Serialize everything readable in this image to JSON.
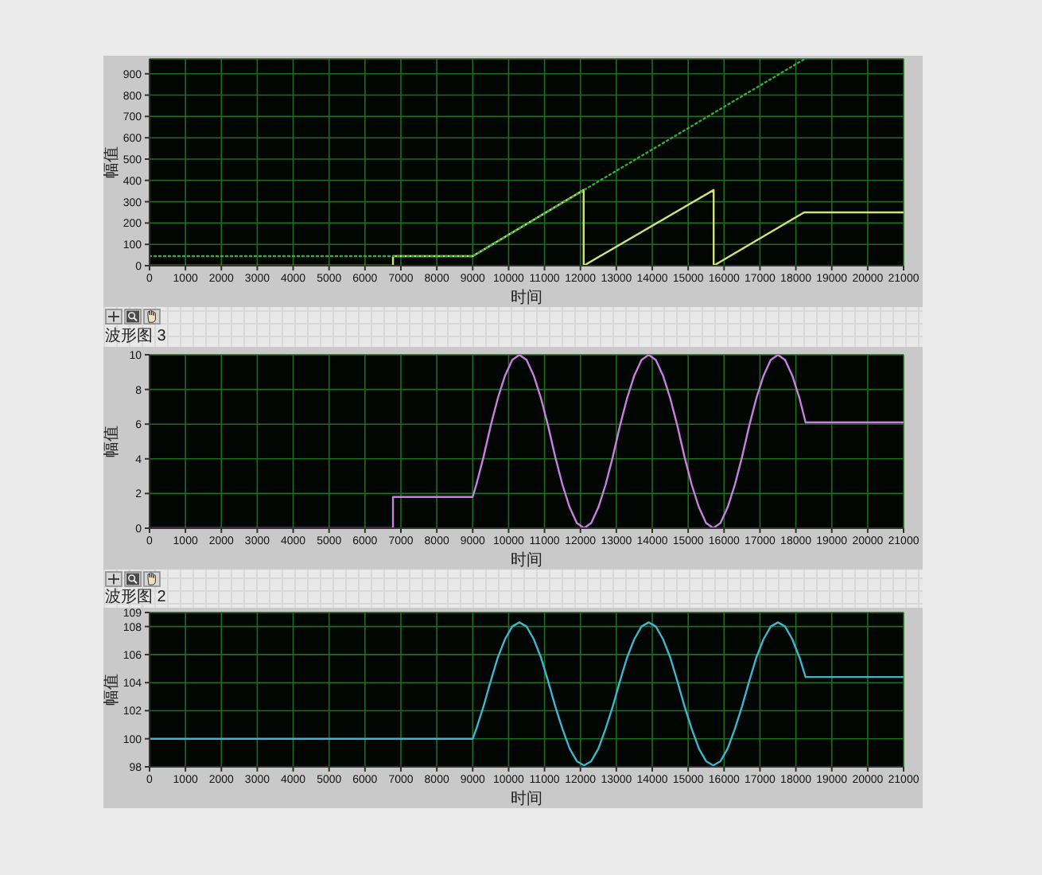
{
  "chart_data": [
    {
      "type": "line",
      "xlabel": "时间",
      "ylabel": "幅值",
      "xlim": [
        0,
        21000
      ],
      "xticks": [
        0,
        1000,
        2000,
        3000,
        4000,
        5000,
        6000,
        7000,
        8000,
        9000,
        10000,
        11000,
        12000,
        13000,
        14000,
        15000,
        16000,
        17000,
        18000,
        19000,
        20000,
        21000
      ],
      "ylim": [
        0,
        970
      ],
      "yticks": [
        0,
        100,
        200,
        300,
        400,
        500,
        600,
        700,
        800,
        900
      ],
      "grid": true,
      "series": [
        {
          "color": "#d2e37e",
          "x": [
            0,
            6780,
            6780,
            9000,
            12090,
            12090,
            15710,
            15710,
            18230,
            21000
          ],
          "values": [
            0,
            0,
            45,
            45,
            355,
            0,
            355,
            0,
            250,
            250
          ]
        },
        {
          "color": "#34b034",
          "line_style": "dotted",
          "x": [
            0,
            9000,
            18250
          ],
          "values": [
            45,
            45,
            970
          ]
        }
      ]
    },
    {
      "type": "line",
      "title": "波形图 3",
      "xlabel": "时间",
      "ylabel": "幅值",
      "xlim": [
        0,
        21000
      ],
      "xticks": [
        0,
        1000,
        2000,
        3000,
        4000,
        5000,
        6000,
        7000,
        8000,
        9000,
        10000,
        11000,
        12000,
        13000,
        14000,
        15000,
        16000,
        17000,
        18000,
        19000,
        20000,
        21000
      ],
      "ylim": [
        0,
        10
      ],
      "yticks": [
        0,
        2,
        4,
        6,
        8,
        10
      ],
      "grid": true,
      "series": [
        {
          "color": "#c77fe0",
          "x": [
            0,
            6780,
            6780,
            9000,
            9100,
            9300,
            9500,
            9700,
            9900,
            10100,
            10300,
            10500,
            10700,
            10900,
            11100,
            11300,
            11500,
            11700,
            11900,
            12100,
            12300,
            12500,
            12700,
            12900,
            13100,
            13300,
            13500,
            13700,
            13900,
            14100,
            14300,
            14500,
            14700,
            14900,
            15100,
            15300,
            15500,
            15700,
            15900,
            16100,
            16300,
            16500,
            16700,
            16900,
            17100,
            17300,
            17500,
            17700,
            17900,
            18100,
            18270,
            21000
          ],
          "values": [
            0,
            0,
            1.8,
            1.8,
            2.5,
            4.1,
            5.9,
            7.5,
            8.8,
            9.7,
            10,
            9.7,
            8.8,
            7.5,
            5.9,
            4.1,
            2.5,
            1.2,
            0.3,
            0,
            0.3,
            1.2,
            2.5,
            4.1,
            5.9,
            7.5,
            8.8,
            9.7,
            10,
            9.7,
            8.8,
            7.5,
            5.9,
            4.1,
            2.5,
            1.2,
            0.3,
            0,
            0.3,
            1.2,
            2.5,
            4.1,
            5.9,
            7.5,
            8.8,
            9.7,
            10,
            9.7,
            8.8,
            7.5,
            6.1,
            6.1
          ]
        }
      ]
    },
    {
      "type": "line",
      "title": "波形图 2",
      "xlabel": "时间",
      "ylabel": "幅值",
      "xlim": [
        0,
        21000
      ],
      "xticks": [
        0,
        1000,
        2000,
        3000,
        4000,
        5000,
        6000,
        7000,
        8000,
        9000,
        10000,
        11000,
        12000,
        13000,
        14000,
        15000,
        16000,
        17000,
        18000,
        19000,
        20000,
        21000
      ],
      "ylim": [
        98,
        109
      ],
      "yticks": [
        98,
        100,
        102,
        104,
        106,
        108,
        109
      ],
      "grid": true,
      "series": [
        {
          "color": "#3fb4cf",
          "x": [
            0,
            9000,
            9100,
            9300,
            9500,
            9700,
            9900,
            10100,
            10300,
            10500,
            10700,
            10900,
            11100,
            11300,
            11500,
            11700,
            11900,
            12100,
            12300,
            12500,
            12700,
            12900,
            13100,
            13300,
            13500,
            13700,
            13900,
            14100,
            14300,
            14500,
            14700,
            14900,
            15100,
            15300,
            15500,
            15700,
            15900,
            16100,
            16300,
            16500,
            16700,
            16900,
            17100,
            17300,
            17500,
            17700,
            17900,
            18100,
            18270,
            21000
          ],
          "values": [
            100,
            100,
            100.7,
            102.3,
            104.1,
            105.8,
            107.1,
            108,
            108.3,
            108,
            107.1,
            105.8,
            104.1,
            102.3,
            100.7,
            99.3,
            98.4,
            98.1,
            98.4,
            99.3,
            100.7,
            102.3,
            104.1,
            105.8,
            107.1,
            108,
            108.3,
            108,
            107.1,
            105.8,
            104.1,
            102.3,
            100.7,
            99.3,
            98.4,
            98.1,
            98.4,
            99.3,
            100.7,
            102.3,
            104.1,
            105.8,
            107.1,
            108,
            108.3,
            108,
            107.1,
            105.8,
            104.4,
            104.4
          ]
        }
      ]
    }
  ]
}
